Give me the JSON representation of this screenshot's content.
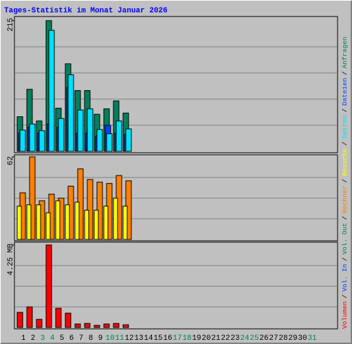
{
  "chart_data": {
    "type": "bar",
    "title": "Tages-Statistik im Monat Januar 2026",
    "categories": [
      "1",
      "2",
      "3",
      "4",
      "5",
      "6",
      "7",
      "8",
      "9",
      "10",
      "11",
      "12",
      "13",
      "14",
      "15",
      "16",
      "17",
      "18",
      "19",
      "20",
      "21",
      "22",
      "23",
      "24",
      "25",
      "26",
      "27",
      "28",
      "29",
      "30",
      "31"
    ],
    "category_colors": [
      "#000000",
      "#000000",
      "#00805c",
      "#00805c",
      "#000000",
      "#000000",
      "#000000",
      "#000000",
      "#000000",
      "#00805c",
      "#00805c",
      "#000000",
      "#000000",
      "#000000",
      "#000000",
      "#000000",
      "#00805c",
      "#00805c",
      "#000000",
      "#000000",
      "#000000",
      "#000000",
      "#000000",
      "#00805c",
      "#00805c",
      "#000000",
      "#000000",
      "#000000",
      "#000000",
      "#000000",
      "#00805c"
    ],
    "legend_separator": "/",
    "panels": [
      {
        "ylim": [
          0,
          215
        ],
        "yticks": [
          215
        ],
        "series": [
          {
            "name": "Seiten",
            "color": "#00e0ff",
            "values": [
              35,
              45,
              34,
              199,
              54,
              126,
              68,
              70,
              36,
              29,
              50,
              37,
              null,
              null,
              null,
              null,
              null,
              null,
              null,
              null,
              null,
              null,
              null,
              null,
              null,
              null,
              null,
              null,
              null,
              null,
              null
            ]
          },
          {
            "name": "Dateien",
            "color": "#0040ff",
            "values": [
              30,
              40,
              30,
              45,
              40,
              105,
              30,
              30,
              25,
              43,
              30,
              28,
              null,
              null,
              null,
              null,
              null,
              null,
              null,
              null,
              null,
              null,
              null,
              null,
              null,
              null,
              null,
              null,
              null,
              null,
              null
            ]
          },
          {
            "name": "Anfragen",
            "color": "#00805c",
            "values": [
              57,
              102,
              50,
              215,
              71,
              144,
              100,
              100,
              61,
              70,
              83,
              63,
              null,
              null,
              null,
              null,
              null,
              null,
              null,
              null,
              null,
              null,
              null,
              null,
              null,
              null,
              null,
              null,
              null,
              null,
              null
            ]
          }
        ]
      },
      {
        "ylim": [
          0,
          62
        ],
        "yticks": [
          62
        ],
        "series": [
          {
            "name": "Rechner",
            "color": "#ff8000",
            "values": [
              35,
              62,
              29,
              34,
              31,
              40,
              53,
              45,
              43,
              42,
              48,
              44,
              null,
              null,
              null,
              null,
              null,
              null,
              null,
              null,
              null,
              null,
              null,
              null,
              null,
              null,
              null,
              null,
              null,
              null,
              null
            ]
          },
          {
            "name": "Besuche",
            "color": "#ffff00",
            "values": [
              25,
              26,
              26,
              20,
              29,
              26,
              28,
              22,
              22,
              25,
              31,
              25,
              null,
              null,
              null,
              null,
              null,
              null,
              null,
              null,
              null,
              null,
              null,
              null,
              null,
              null,
              null,
              null,
              null,
              null,
              null
            ]
          }
        ]
      },
      {
        "ylim": [
          0,
          4.25
        ],
        "yticks": [
          {
            "value": 4.25,
            "label": "4.25 MB"
          }
        ],
        "series": [
          {
            "name": "Volumen",
            "color": "#ff0000",
            "values": [
              0.78,
              1.06,
              0.42,
              4.25,
              0.99,
              0.74,
              0.18,
              0.21,
              0.11,
              0.18,
              0.21,
              0.14,
              null,
              null,
              null,
              null,
              null,
              null,
              null,
              null,
              null,
              null,
              null,
              null,
              null,
              null,
              null,
              null,
              null,
              null,
              null
            ]
          },
          {
            "name": "Vol. In",
            "color": "#0040ff",
            "values": [
              null,
              null,
              null,
              null,
              null,
              null,
              null,
              null,
              null,
              null,
              null,
              null,
              null,
              null,
              null,
              null,
              null,
              null,
              null,
              null,
              null,
              null,
              null,
              null,
              null,
              null,
              null,
              null,
              null,
              null,
              null
            ]
          },
          {
            "name": "Vol. Out",
            "color": "#00805c",
            "values": [
              null,
              null,
              null,
              null,
              null,
              null,
              null,
              null,
              null,
              null,
              null,
              null,
              null,
              null,
              null,
              null,
              null,
              null,
              null,
              null,
              null,
              null,
              null,
              null,
              null,
              null,
              null,
              null,
              null,
              null,
              null
            ]
          }
        ]
      }
    ]
  }
}
